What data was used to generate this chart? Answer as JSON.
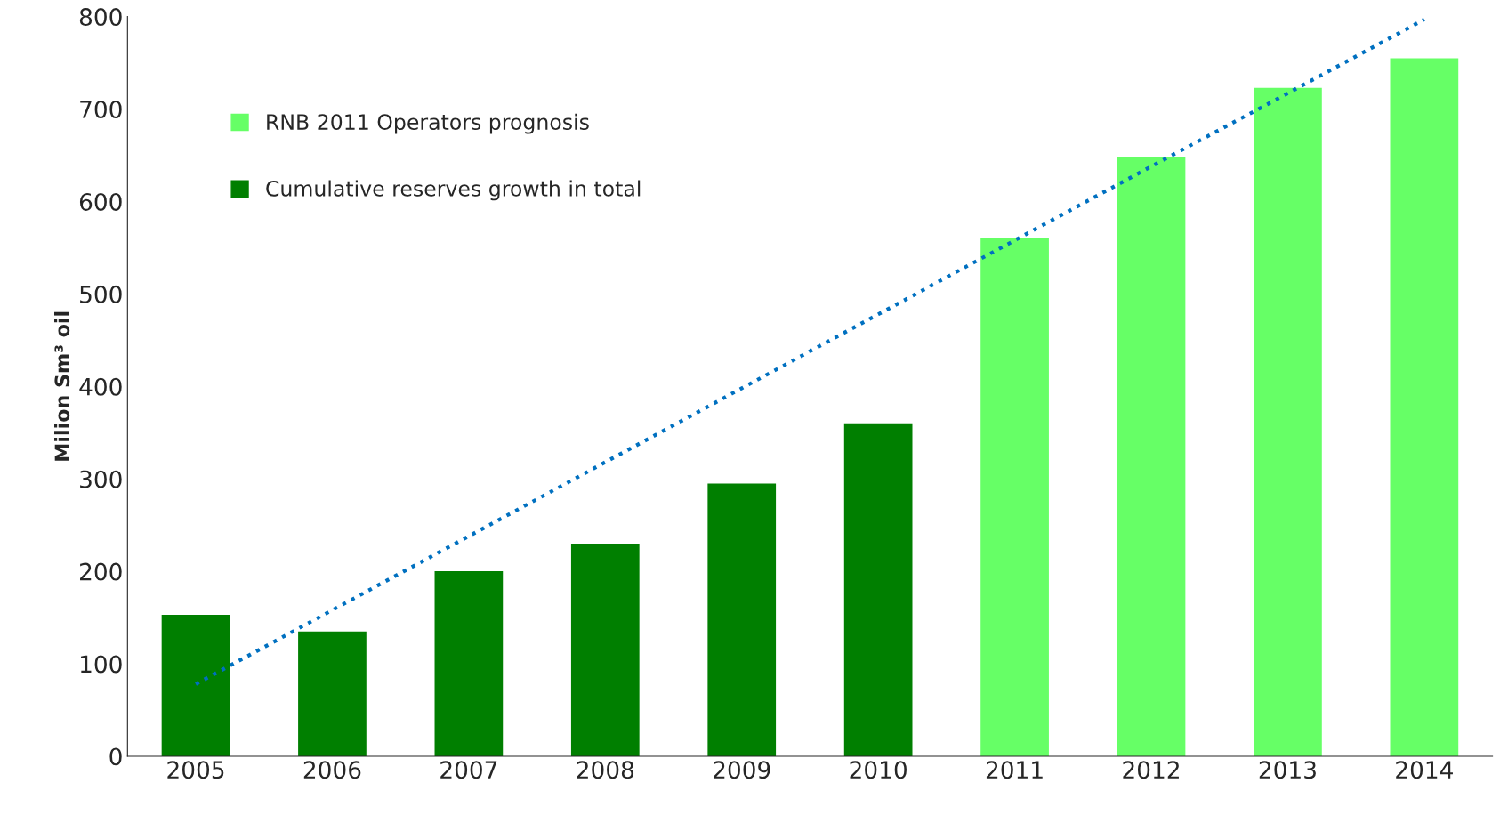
{
  "chart_data": {
    "type": "bar",
    "ylabel": "Milion Sm³ oil",
    "categories": [
      "2005",
      "2006",
      "2007",
      "2008",
      "2009",
      "2010",
      "2011",
      "2012",
      "2013",
      "2014"
    ],
    "series": [
      {
        "name": "RNB 2011 Operators prognosis",
        "color": "#66ff66",
        "values": [
          null,
          null,
          null,
          null,
          null,
          null,
          561,
          648,
          723,
          755
        ]
      },
      {
        "name": "Cumulative reserves growth in total",
        "color": "#007f00",
        "values": [
          153,
          135,
          200,
          230,
          295,
          360,
          null,
          null,
          null,
          null
        ]
      },
      {
        "type": "line",
        "color": "#0070c0",
        "line_style": "dotted",
        "values": [
          78,
          158,
          238,
          318,
          398,
          478,
          558,
          638,
          717,
          797
        ]
      }
    ],
    "ylim": [
      0,
      800
    ],
    "yticks": [
      0,
      100,
      200,
      300,
      400,
      500,
      600,
      700,
      800
    ],
    "grid": false,
    "legend": "top left"
  }
}
